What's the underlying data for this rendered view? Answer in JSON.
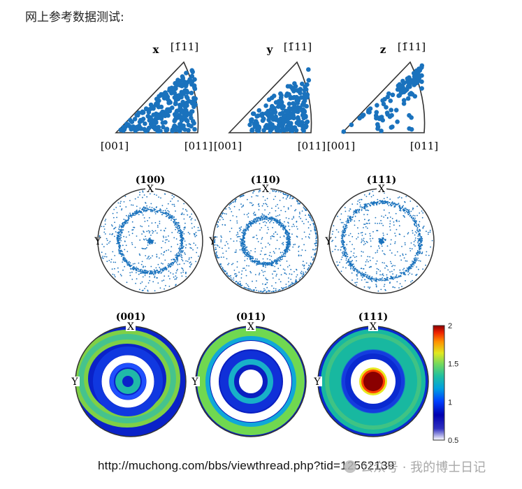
{
  "page_title": "网上参考数据测试:",
  "url_text": "http://muchong.com/bbs/viewthread.php?tid=12562139",
  "watermark_text": "公众号 · 我的博士日记",
  "colors": {
    "points": "#1a72bd",
    "outline": "#333333"
  },
  "chart_data": [
    {
      "type": "scatter",
      "name": "inverse-pole-figures",
      "panels": [
        {
          "title": "x",
          "corner_top": "[1̄11]",
          "corner_left": "[001]",
          "corner_right": "[011]",
          "density": "dense-right"
        },
        {
          "title": "y",
          "corner_top": "[1̄11]",
          "corner_left": "[001]",
          "corner_right": "[011]",
          "density": "dense-middle"
        },
        {
          "title": "z",
          "corner_top": "[1̄11]",
          "corner_left": "[001]",
          "corner_right": "[011]",
          "density": "sparse-edges"
        }
      ]
    },
    {
      "type": "scatter",
      "name": "pole-figures-points",
      "panels": [
        {
          "title": "(100)",
          "x_label": "X",
          "y_label": "Y",
          "rings": [
            0.62
          ],
          "center_cluster": true
        },
        {
          "title": "(110)",
          "x_label": "X",
          "y_label": "Y",
          "rings": [
            0.45,
            1.0
          ],
          "center_cluster": false
        },
        {
          "title": "(111)",
          "x_label": "X",
          "y_label": "Y",
          "rings": [
            0.76
          ],
          "center_cluster": true
        }
      ]
    },
    {
      "type": "heatmap",
      "name": "pole-figures-density",
      "panels": [
        {
          "title": "(001)",
          "x_label": "X",
          "y_label": "Y"
        },
        {
          "title": "(011)",
          "x_label": "X",
          "y_label": "Y"
        },
        {
          "title": "(111)",
          "x_label": "X",
          "y_label": "Y"
        }
      ],
      "colorbar": {
        "min": 0.5,
        "max": 2,
        "ticks": [
          "2",
          "1.5",
          "1",
          "0.5"
        ],
        "colormap": [
          "#ffffff",
          "#00008f",
          "#0000ff",
          "#00a0ff",
          "#20c0a0",
          "#a0e040",
          "#ffff00",
          "#ff8000",
          "#ff0000",
          "#800000"
        ]
      }
    }
  ]
}
